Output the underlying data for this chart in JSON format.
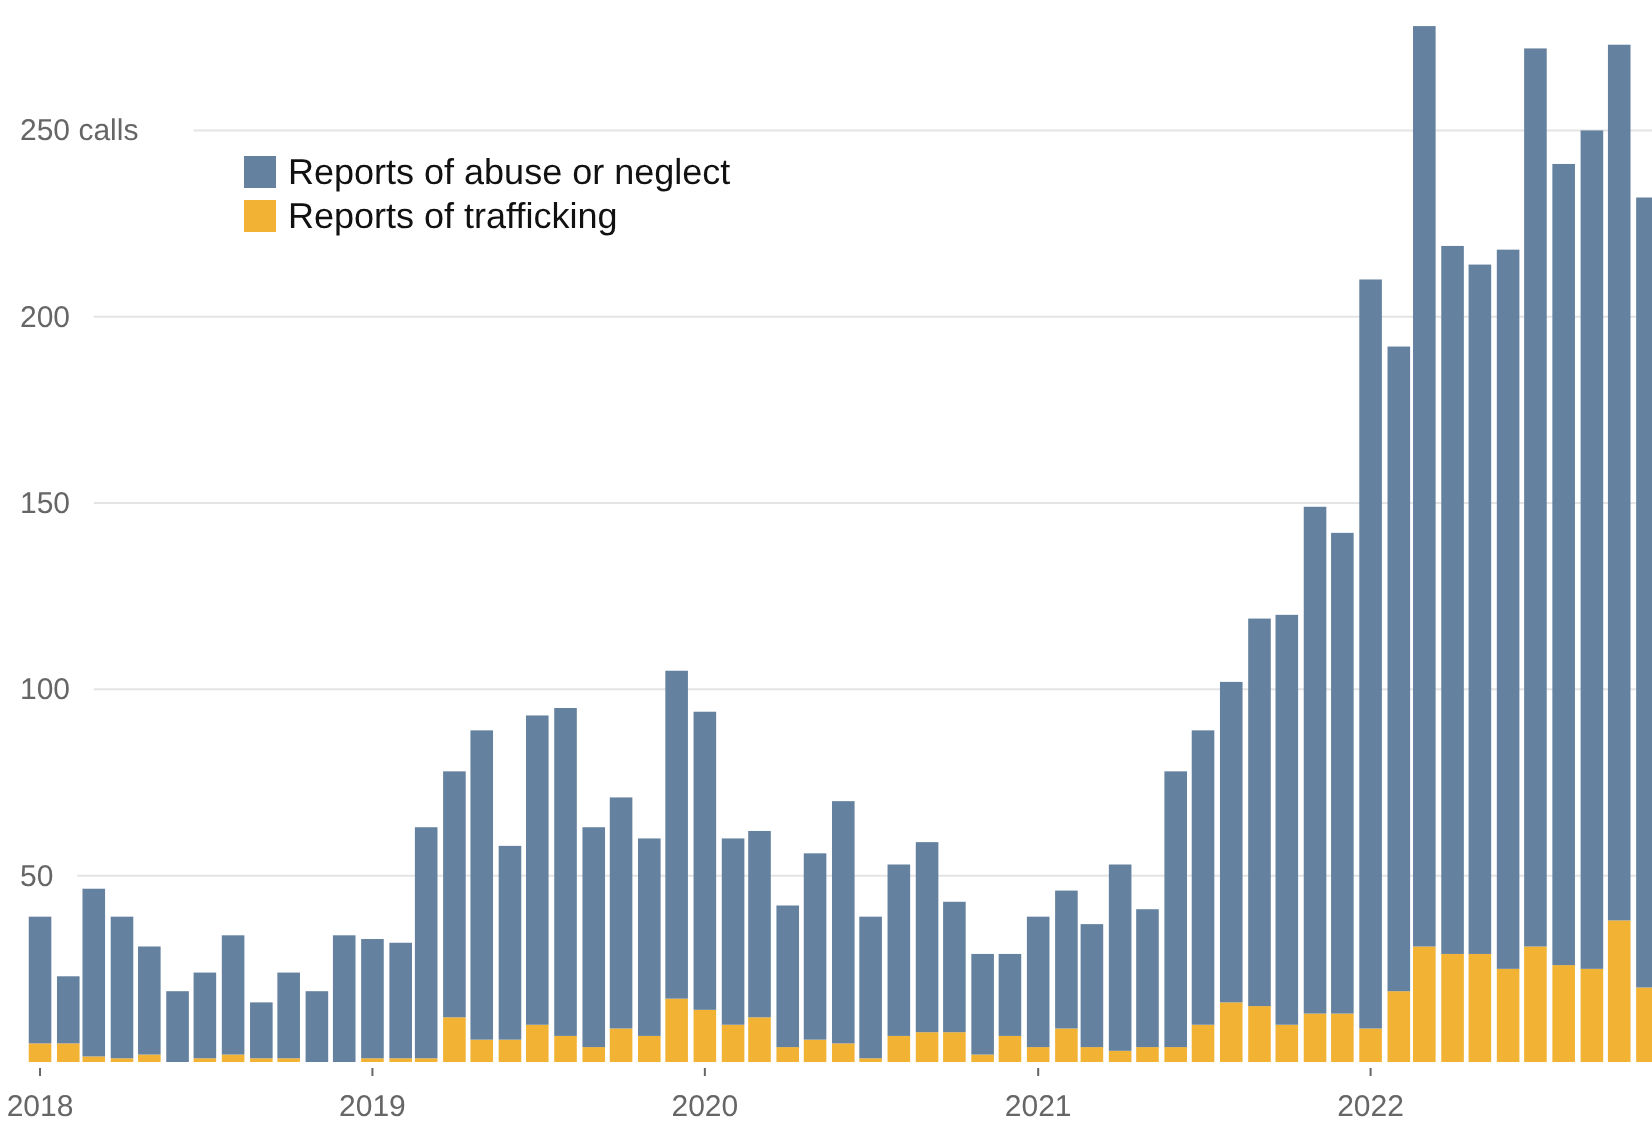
{
  "chart_data": {
    "type": "bar",
    "stacked": true,
    "x": [
      "2018-01",
      "2018-02",
      "2018-03",
      "2018-04",
      "2018-05",
      "2018-06",
      "2018-07",
      "2018-08",
      "2018-09",
      "2018-10",
      "2018-11",
      "2018-12",
      "2019-01",
      "2019-02",
      "2019-03",
      "2019-04",
      "2019-05",
      "2019-06",
      "2019-07",
      "2019-08",
      "2019-09",
      "2019-10",
      "2019-11",
      "2019-12",
      "2020-01",
      "2020-02",
      "2020-03",
      "2020-04",
      "2020-05",
      "2020-06",
      "2020-07",
      "2020-08",
      "2020-09",
      "2020-10",
      "2020-11",
      "2020-12",
      "2021-01",
      "2021-02",
      "2021-03",
      "2021-04",
      "2021-05",
      "2021-06",
      "2021-07",
      "2021-08",
      "2021-09",
      "2021-10",
      "2021-11",
      "2021-12",
      "2022-01",
      "2022-02",
      "2022-03",
      "2022-04",
      "2022-05",
      "2022-06",
      "2022-07",
      "2022-08",
      "2022-09",
      "2022-10",
      "2022-11"
    ],
    "series": [
      {
        "name": "Reports of trafficking",
        "color": "#f2b233",
        "values": [
          5,
          5,
          1.5,
          1,
          2,
          0,
          1,
          2,
          1,
          1,
          0,
          0,
          1,
          1,
          1,
          12,
          6,
          6,
          10,
          7,
          4,
          9,
          7,
          17,
          14,
          10,
          12,
          4,
          6,
          5,
          1,
          7,
          8,
          8,
          2,
          7,
          4,
          9,
          4,
          3,
          4,
          4,
          10,
          16,
          15,
          10,
          13,
          13,
          9,
          19,
          31,
          29,
          29,
          25,
          31,
          26,
          25,
          38,
          20
        ]
      },
      {
        "name": "Reports of abuse or neglect",
        "color": "#64819f",
        "values": [
          34,
          18,
          45,
          38,
          29,
          19,
          23,
          32,
          15,
          23,
          19,
          34,
          32,
          31,
          62,
          66,
          83,
          52,
          83,
          88,
          59,
          62,
          53,
          88,
          80,
          50,
          50,
          38,
          50,
          65,
          38,
          46,
          51,
          35,
          27,
          22,
          35,
          37,
          33,
          50,
          37,
          74,
          79,
          86,
          104,
          110,
          136,
          129,
          201,
          173,
          247,
          190,
          185,
          193,
          241,
          215,
          225,
          235,
          212
        ]
      }
    ],
    "xlim": [
      "2017-12-10",
      "2022-11-06"
    ],
    "xticks": [
      "2018",
      "2019",
      "2020",
      "2021",
      "2022"
    ],
    "ylim": [
      0,
      285
    ],
    "yticks": [
      50,
      100,
      150,
      200,
      {
        "value": 250,
        "label": "250 calls"
      }
    ],
    "grid": "y",
    "legend": "top left"
  }
}
